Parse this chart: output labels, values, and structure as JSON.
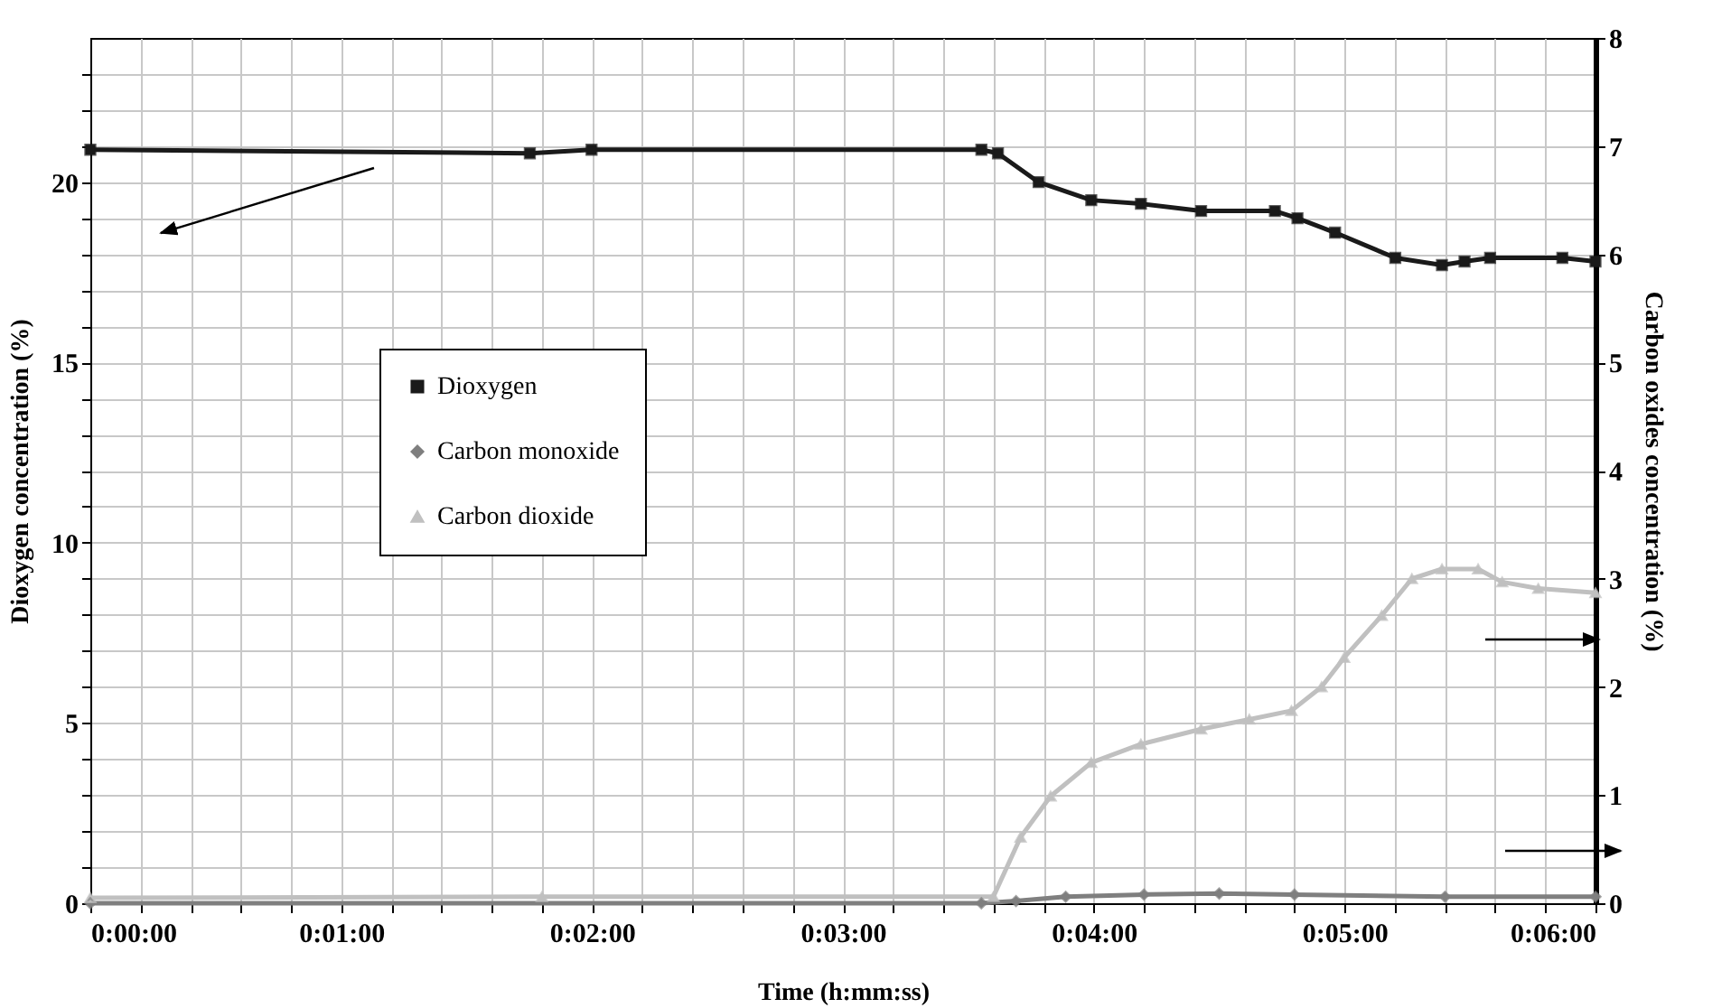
{
  "chart_data": {
    "type": "line",
    "xlabel": "Time (h:mm:ss)",
    "ylabel": "Dioxygen concentration (%)",
    "y2label": "Carbon oxides concentration (%)",
    "series": [
      {
        "name": "Dioxygen",
        "color": "#1a1a1a",
        "marker": "square",
        "x": [
          0,
          0.0292,
          0.0333,
          0.0592,
          0.0603,
          0.063,
          0.0665,
          0.0698,
          0.0738,
          0.0787,
          0.0802,
          0.0827,
          0.0867,
          0.0898,
          0.0913,
          0.093,
          0.0978,
          0.1
        ],
        "values": [
          20.9,
          20.8,
          20.9,
          20.9,
          20.8,
          20.0,
          19.5,
          19.4,
          19.2,
          19.2,
          19.0,
          18.6,
          17.9,
          17.7,
          17.8,
          17.9,
          17.9,
          17.8
        ]
      },
      {
        "name": "Carbon monoxide",
        "color": "#7f7f7f",
        "marker": "diamond",
        "axis": "y2",
        "x": [
          0,
          0.0592,
          0.0615,
          0.0648,
          0.07,
          0.075,
          0.08,
          0.09,
          0.1
        ],
        "values": [
          0.0,
          0.0,
          0.02,
          0.06,
          0.08,
          0.09,
          0.08,
          0.06,
          0.06
        ]
      },
      {
        "name": "Carbon dioxide",
        "color": "#c0c0c0",
        "marker": "triangle",
        "axis": "y2",
        "x": [
          0,
          0.03,
          0.06,
          0.0618,
          0.0638,
          0.0665,
          0.0698,
          0.0738,
          0.077,
          0.0798,
          0.0818,
          0.0833,
          0.0858,
          0.0878,
          0.0898,
          0.0922,
          0.0938,
          0.0962,
          0.1
        ],
        "values": [
          0.05,
          0.06,
          0.06,
          0.61,
          0.99,
          1.3,
          1.47,
          1.61,
          1.7,
          1.78,
          2.0,
          2.27,
          2.66,
          3.0,
          3.09,
          3.09,
          2.97,
          2.91,
          2.87
        ]
      }
    ],
    "xlim": [
      0,
      0.1
    ],
    "xticks": [
      {
        "value": 0,
        "label": "0:00:00"
      },
      {
        "value": 0.003333,
        "label": null
      },
      {
        "value": 0.006667,
        "label": null
      },
      {
        "value": 0.01,
        "label": null
      },
      {
        "value": 0.013333,
        "label": null
      },
      {
        "value": 0.016667,
        "label": "0:01:00"
      },
      {
        "value": 0.02,
        "label": null
      },
      {
        "value": 0.023333,
        "label": null
      },
      {
        "value": 0.026667,
        "label": null
      },
      {
        "value": 0.03,
        "label": null
      },
      {
        "value": 0.033333,
        "label": "0:02:00"
      },
      {
        "value": 0.036667,
        "label": null
      },
      {
        "value": 0.04,
        "label": null
      },
      {
        "value": 0.043333,
        "label": null
      },
      {
        "value": 0.046667,
        "label": null
      },
      {
        "value": 0.05,
        "label": "0:03:00"
      },
      {
        "value": 0.053333,
        "label": null
      },
      {
        "value": 0.056667,
        "label": null
      },
      {
        "value": 0.06,
        "label": null
      },
      {
        "value": 0.063333,
        "label": null
      },
      {
        "value": 0.066667,
        "label": "0:04:00"
      },
      {
        "value": 0.07,
        "label": null
      },
      {
        "value": 0.073333,
        "label": null
      },
      {
        "value": 0.076667,
        "label": null
      },
      {
        "value": 0.08,
        "label": null
      },
      {
        "value": 0.083333,
        "label": "0:05:00"
      },
      {
        "value": 0.086667,
        "label": null
      },
      {
        "value": 0.09,
        "label": null
      },
      {
        "value": 0.093333,
        "label": null
      },
      {
        "value": 0.096667,
        "label": null
      },
      {
        "value": 0.1,
        "label": "0:06:00"
      }
    ],
    "ylim": [
      0,
      24
    ],
    "yticks": [
      0,
      {
        "value": 1,
        "label": null
      },
      {
        "value": 2,
        "label": null
      },
      {
        "value": 3,
        "label": null
      },
      {
        "value": 4,
        "label": null
      },
      5,
      {
        "value": 6,
        "label": null
      },
      {
        "value": 7,
        "label": null
      },
      {
        "value": 8,
        "label": null
      },
      {
        "value": 9,
        "label": null
      },
      10,
      {
        "value": 11,
        "label": null
      },
      {
        "value": 12,
        "label": null
      },
      {
        "value": 13,
        "label": null
      },
      {
        "value": 14,
        "label": null
      },
      15,
      {
        "value": 16,
        "label": null
      },
      {
        "value": 17,
        "label": null
      },
      {
        "value": 18,
        "label": null
      },
      {
        "value": 19,
        "label": null
      },
      20,
      {
        "value": 21,
        "label": null
      },
      {
        "value": 22,
        "label": null
      },
      {
        "value": 23,
        "label": null
      }
    ],
    "y2lim": [
      0,
      8
    ],
    "y2ticks": [
      0,
      1,
      2,
      3,
      4,
      5,
      6,
      7,
      8
    ],
    "grid": true,
    "legend": "left"
  }
}
